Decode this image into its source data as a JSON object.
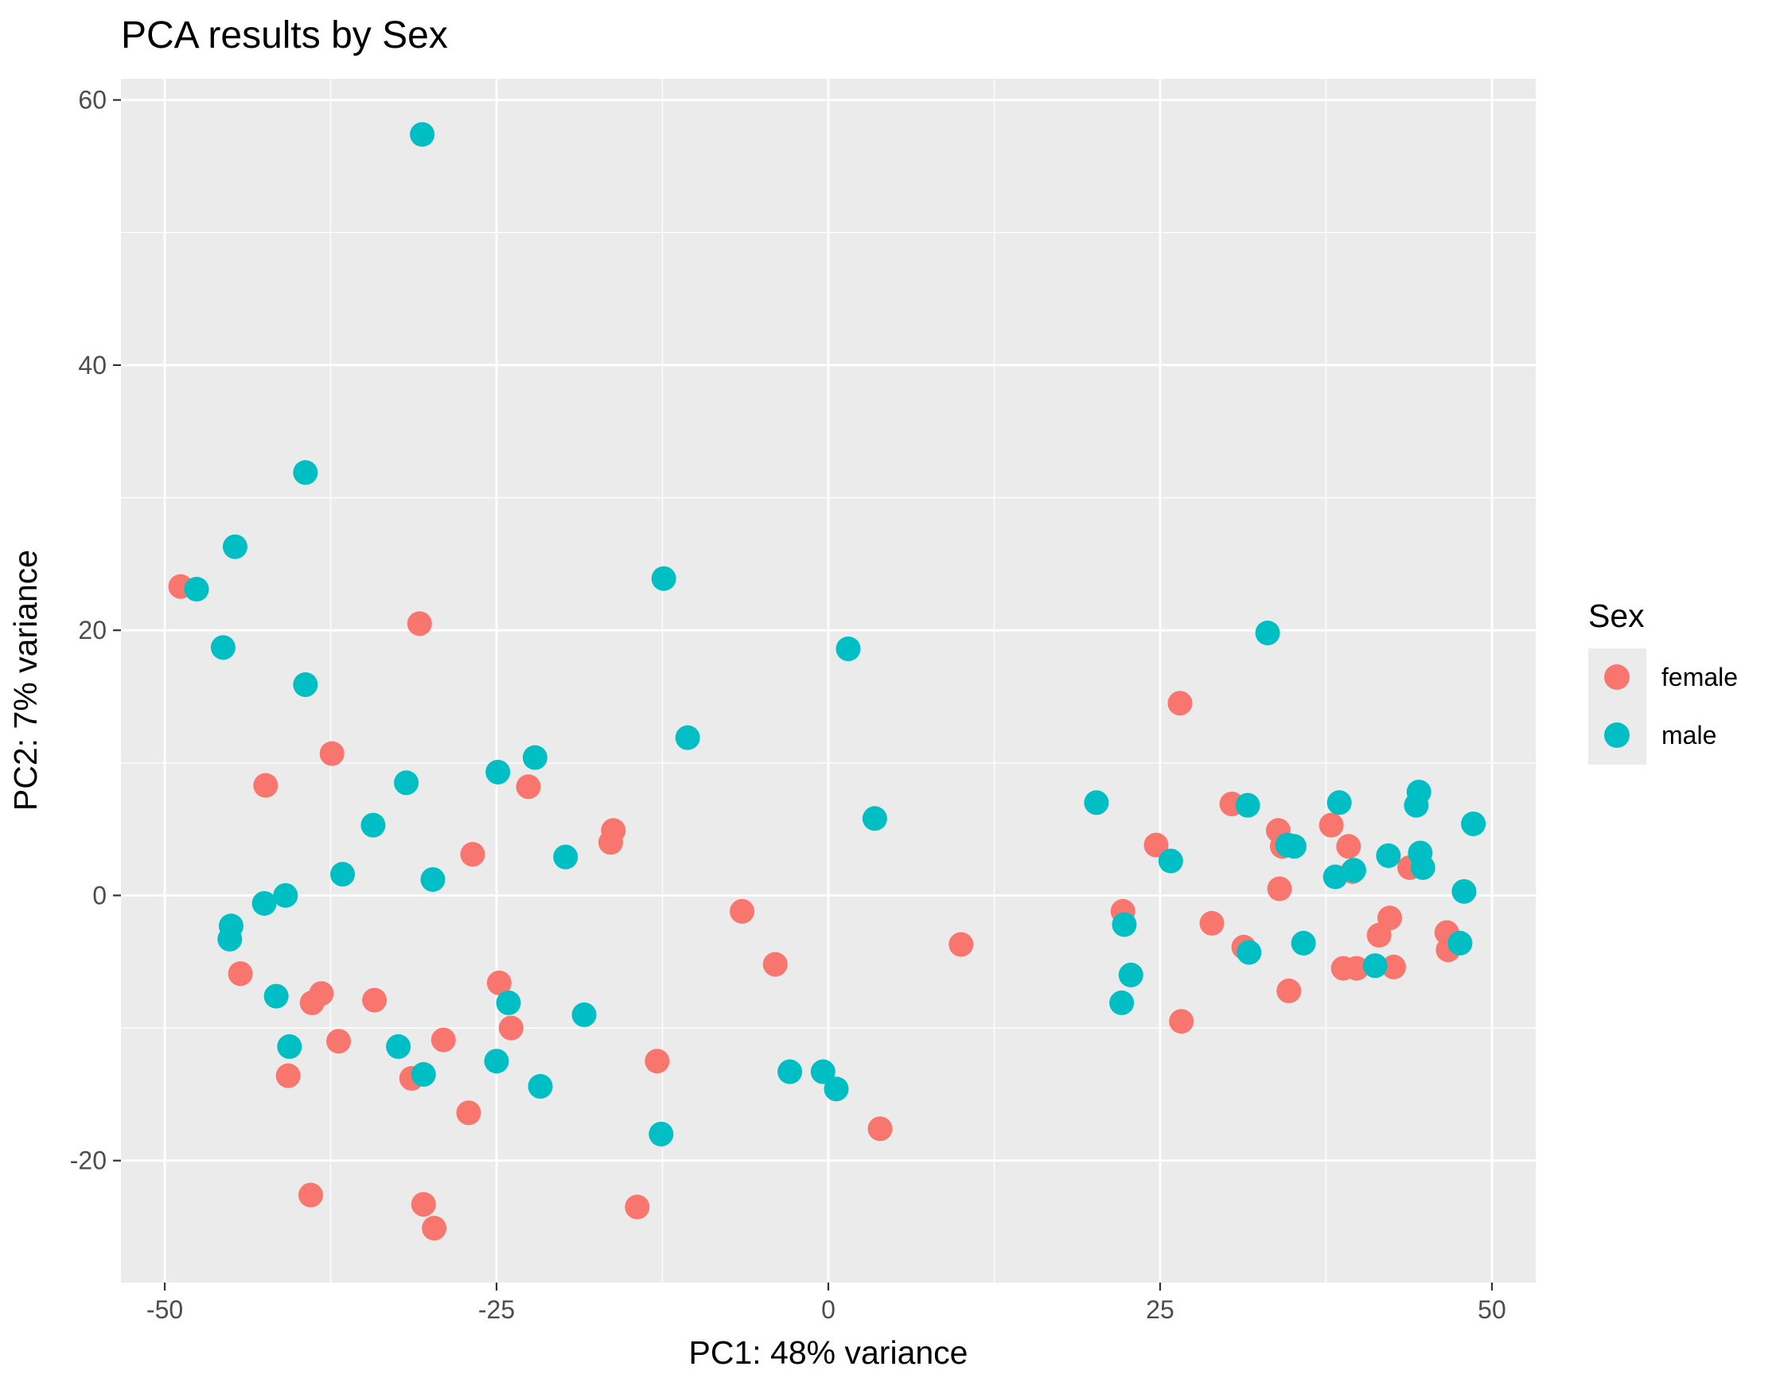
{
  "chart_data": {
    "type": "scatter",
    "title": "PCA results by Sex",
    "xlabel": "PC1: 48% variance",
    "ylabel": "PC2: 7% variance",
    "xlim": [
      -53.3,
      53.3
    ],
    "ylim": [
      -29.2,
      61.6
    ],
    "x_ticks": [
      -50,
      -25,
      0,
      25,
      50
    ],
    "x_tick_labels": [
      "-50",
      "-25",
      "0",
      "25",
      "50"
    ],
    "y_ticks": [
      -20,
      0,
      20,
      40,
      60
    ],
    "y_tick_labels": [
      "-20",
      "0",
      "20",
      "40",
      "60"
    ],
    "grid": true,
    "legend": {
      "title": "Sex",
      "position": "right"
    },
    "series": [
      {
        "name": "female",
        "color": "#F8766D",
        "points": [
          [
            -48.8,
            23.3
          ],
          [
            -30.8,
            20.5
          ],
          [
            -37.4,
            10.7
          ],
          [
            -42.4,
            8.3
          ],
          [
            -22.6,
            8.2
          ],
          [
            -16.2,
            4.9
          ],
          [
            -16.4,
            4.0
          ],
          [
            -26.8,
            3.1
          ],
          [
            -44.3,
            -5.9
          ],
          [
            -24.8,
            -6.6
          ],
          [
            -38.2,
            -7.4
          ],
          [
            -34.2,
            -7.9
          ],
          [
            -38.9,
            -8.1
          ],
          [
            -36.9,
            -11.0
          ],
          [
            -29.0,
            -10.9
          ],
          [
            -23.9,
            -10.0
          ],
          [
            -40.7,
            -13.6
          ],
          [
            -31.4,
            -13.8
          ],
          [
            -12.9,
            -12.5
          ],
          [
            -27.1,
            -16.4
          ],
          [
            -39.0,
            -22.6
          ],
          [
            -30.5,
            -23.3
          ],
          [
            -29.7,
            -25.1
          ],
          [
            -14.4,
            -23.5
          ],
          [
            -6.5,
            -1.2
          ],
          [
            -4.0,
            -5.2
          ],
          [
            3.9,
            -17.6
          ],
          [
            10.0,
            -3.7
          ],
          [
            26.5,
            14.5
          ],
          [
            30.4,
            6.9
          ],
          [
            24.7,
            3.8
          ],
          [
            22.2,
            -1.2
          ],
          [
            28.9,
            -2.1
          ],
          [
            31.3,
            -3.9
          ],
          [
            26.6,
            -9.5
          ],
          [
            33.9,
            4.9
          ],
          [
            34.2,
            3.7
          ],
          [
            34.0,
            0.5
          ],
          [
            34.7,
            -7.2
          ],
          [
            37.9,
            5.3
          ],
          [
            39.2,
            3.7
          ],
          [
            39.5,
            1.8
          ],
          [
            38.8,
            -5.5
          ],
          [
            39.8,
            -5.5
          ],
          [
            42.3,
            -1.7
          ],
          [
            41.5,
            -3.0
          ],
          [
            42.6,
            -5.4
          ],
          [
            43.8,
            2.1
          ],
          [
            46.6,
            -2.8
          ],
          [
            46.7,
            -4.1
          ]
        ]
      },
      {
        "name": "male",
        "color": "#00BFC4",
        "points": [
          [
            -30.6,
            57.4
          ],
          [
            -39.4,
            31.9
          ],
          [
            -44.7,
            26.3
          ],
          [
            -47.6,
            23.1
          ],
          [
            -45.6,
            18.7
          ],
          [
            -39.4,
            15.9
          ],
          [
            -22.1,
            10.4
          ],
          [
            -24.9,
            9.3
          ],
          [
            -31.8,
            8.5
          ],
          [
            -34.3,
            5.3
          ],
          [
            -36.6,
            1.6
          ],
          [
            -29.8,
            1.2
          ],
          [
            -19.8,
            2.9
          ],
          [
            -42.5,
            -0.6
          ],
          [
            -40.9,
            0.0
          ],
          [
            -45.0,
            -2.3
          ],
          [
            -45.1,
            -3.3
          ],
          [
            -41.6,
            -7.6
          ],
          [
            -40.6,
            -11.4
          ],
          [
            -32.4,
            -11.4
          ],
          [
            -30.5,
            -13.5
          ],
          [
            -24.1,
            -8.1
          ],
          [
            -18.4,
            -9.0
          ],
          [
            -25.0,
            -12.5
          ],
          [
            -21.7,
            -14.4
          ],
          [
            -12.4,
            23.9
          ],
          [
            -10.6,
            11.9
          ],
          [
            1.5,
            18.6
          ],
          [
            3.5,
            5.8
          ],
          [
            -12.6,
            -18.0
          ],
          [
            -2.9,
            -13.3
          ],
          [
            -0.4,
            -13.3
          ],
          [
            0.6,
            -14.6
          ],
          [
            20.2,
            7.0
          ],
          [
            22.3,
            -2.2
          ],
          [
            22.1,
            -8.1
          ],
          [
            22.8,
            -6.0
          ],
          [
            25.8,
            2.6
          ],
          [
            31.6,
            6.8
          ],
          [
            31.7,
            -4.3
          ],
          [
            33.1,
            19.8
          ],
          [
            34.6,
            3.8
          ],
          [
            35.1,
            3.7
          ],
          [
            35.8,
            -3.6
          ],
          [
            38.5,
            7.0
          ],
          [
            38.2,
            1.4
          ],
          [
            39.6,
            1.9
          ],
          [
            42.2,
            3.0
          ],
          [
            44.3,
            6.8
          ],
          [
            44.5,
            7.8
          ],
          [
            44.6,
            3.2
          ],
          [
            44.8,
            2.1
          ],
          [
            41.2,
            -5.3
          ],
          [
            47.9,
            0.3
          ],
          [
            48.6,
            5.4
          ],
          [
            47.6,
            -3.6
          ]
        ]
      }
    ]
  }
}
